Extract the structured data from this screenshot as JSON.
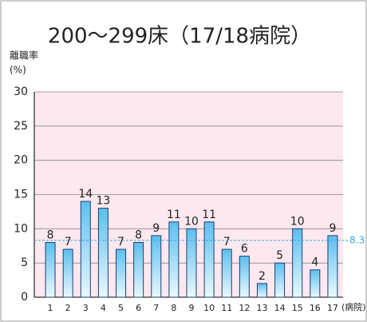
{
  "chart_data": {
    "type": "bar",
    "title": "200〜299床（17/18病院）",
    "y_label": "離職率",
    "y_unit": "(%)",
    "x_label": "(病院)",
    "categories": [
      "1",
      "2",
      "3",
      "4",
      "5",
      "6",
      "7",
      "8",
      "9",
      "10",
      "11",
      "12",
      "13",
      "14",
      "15",
      "16",
      "17"
    ],
    "values": [
      8,
      7,
      14,
      13,
      7,
      8,
      9,
      11,
      10,
      11,
      7,
      6,
      2,
      5,
      10,
      4,
      9
    ],
    "ylim": [
      0,
      30
    ],
    "yticks": [
      0,
      5,
      10,
      15,
      20,
      25,
      30
    ],
    "grid": true,
    "reference_line": {
      "value": 8.3,
      "color": "#3aa6dd"
    }
  }
}
